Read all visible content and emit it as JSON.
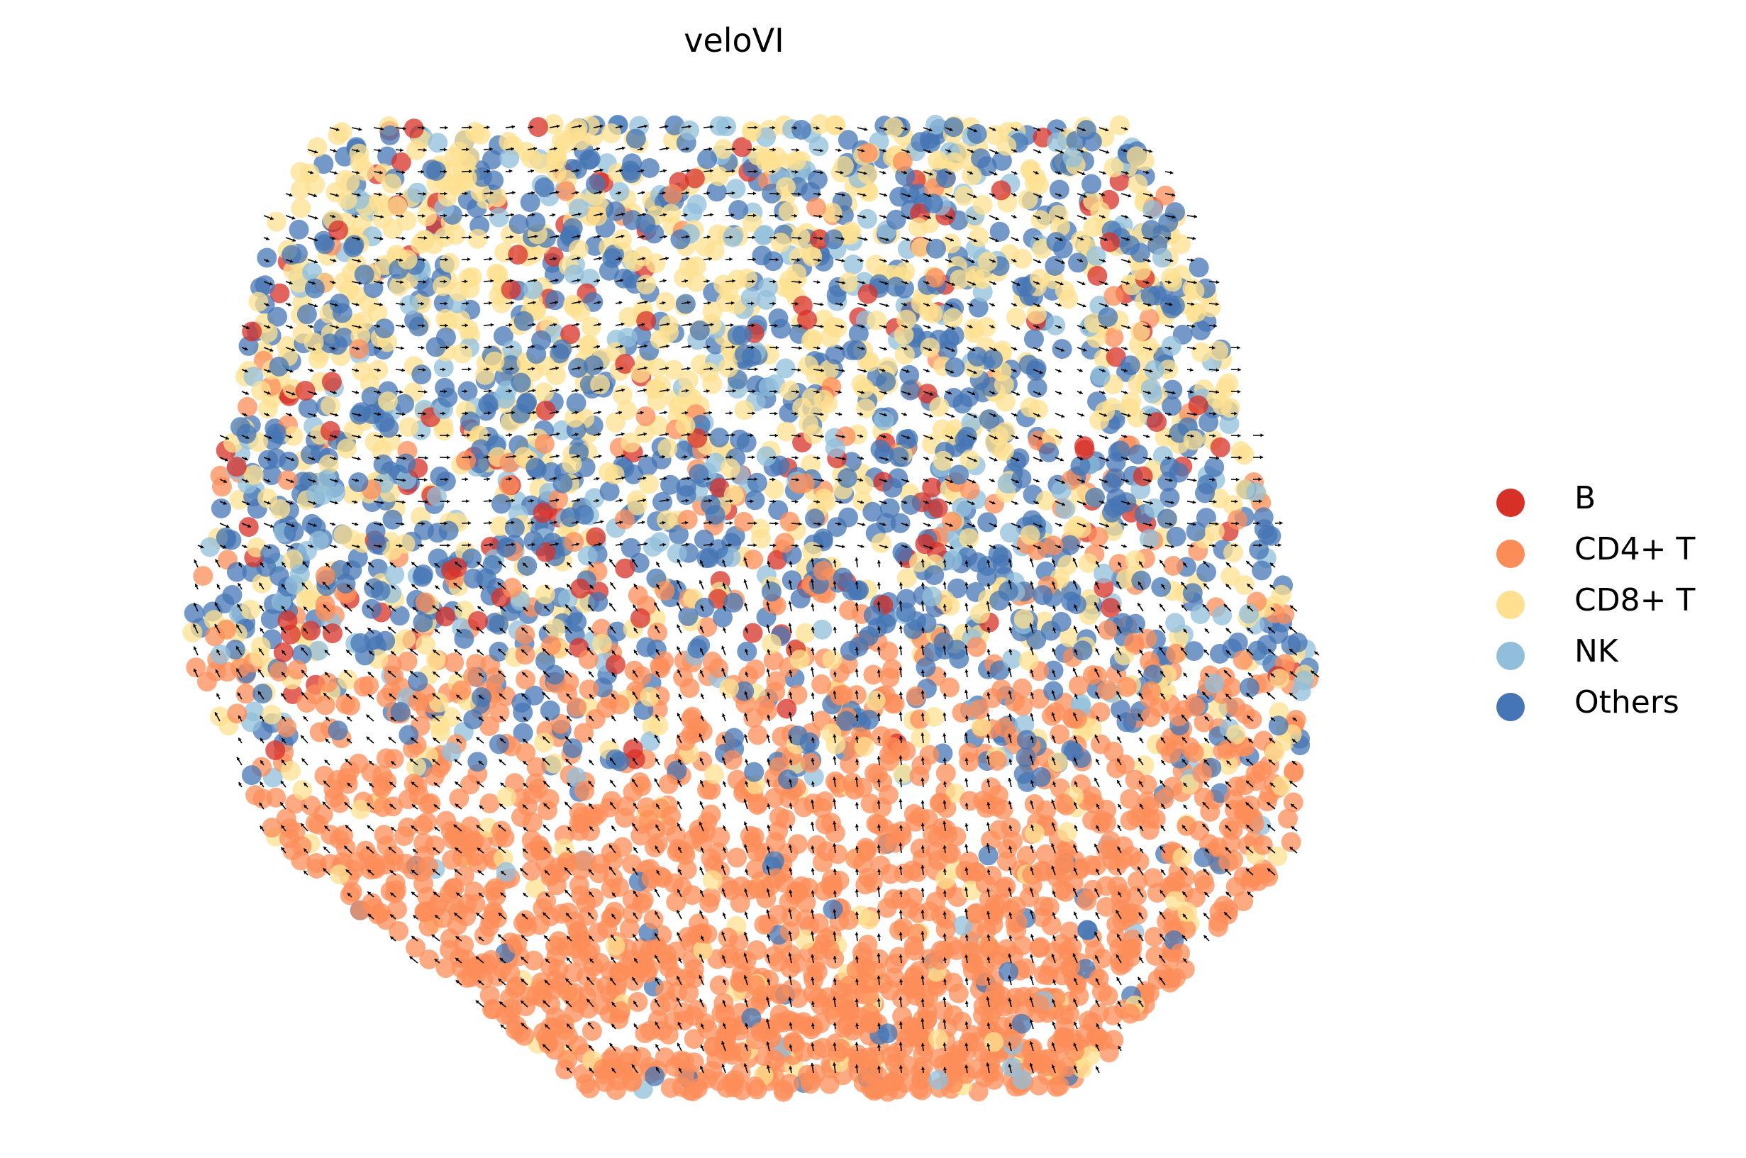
{
  "chart_data": {
    "type": "scatter",
    "title": "veloVI",
    "xlabel": "",
    "ylabel": "",
    "axes_visible": false,
    "grid": false,
    "legend_position": "right",
    "overlay": "velocity arrow field (quiver)",
    "series": [
      {
        "name": "B",
        "color": "#d73027"
      },
      {
        "name": "CD4+ T",
        "color": "#fc8d59"
      },
      {
        "name": "CD8+ T",
        "color": "#fee090"
      },
      {
        "name": "NK",
        "color": "#91bfdb"
      },
      {
        "name": "Others",
        "color": "#4575b4"
      }
    ],
    "regions": {
      "top_band": {
        "dominant": [
          "CD8+ T",
          "Others"
        ],
        "minor": [
          "NK",
          "B"
        ]
      },
      "middle_band": {
        "dominant": [
          "Others",
          "CD8+ T"
        ],
        "minor": [
          "CD4+ T",
          "NK"
        ]
      },
      "bottom_band": {
        "dominant": [
          "CD4+ T"
        ],
        "minor": [
          "CD8+ T",
          "Others"
        ]
      }
    }
  }
}
